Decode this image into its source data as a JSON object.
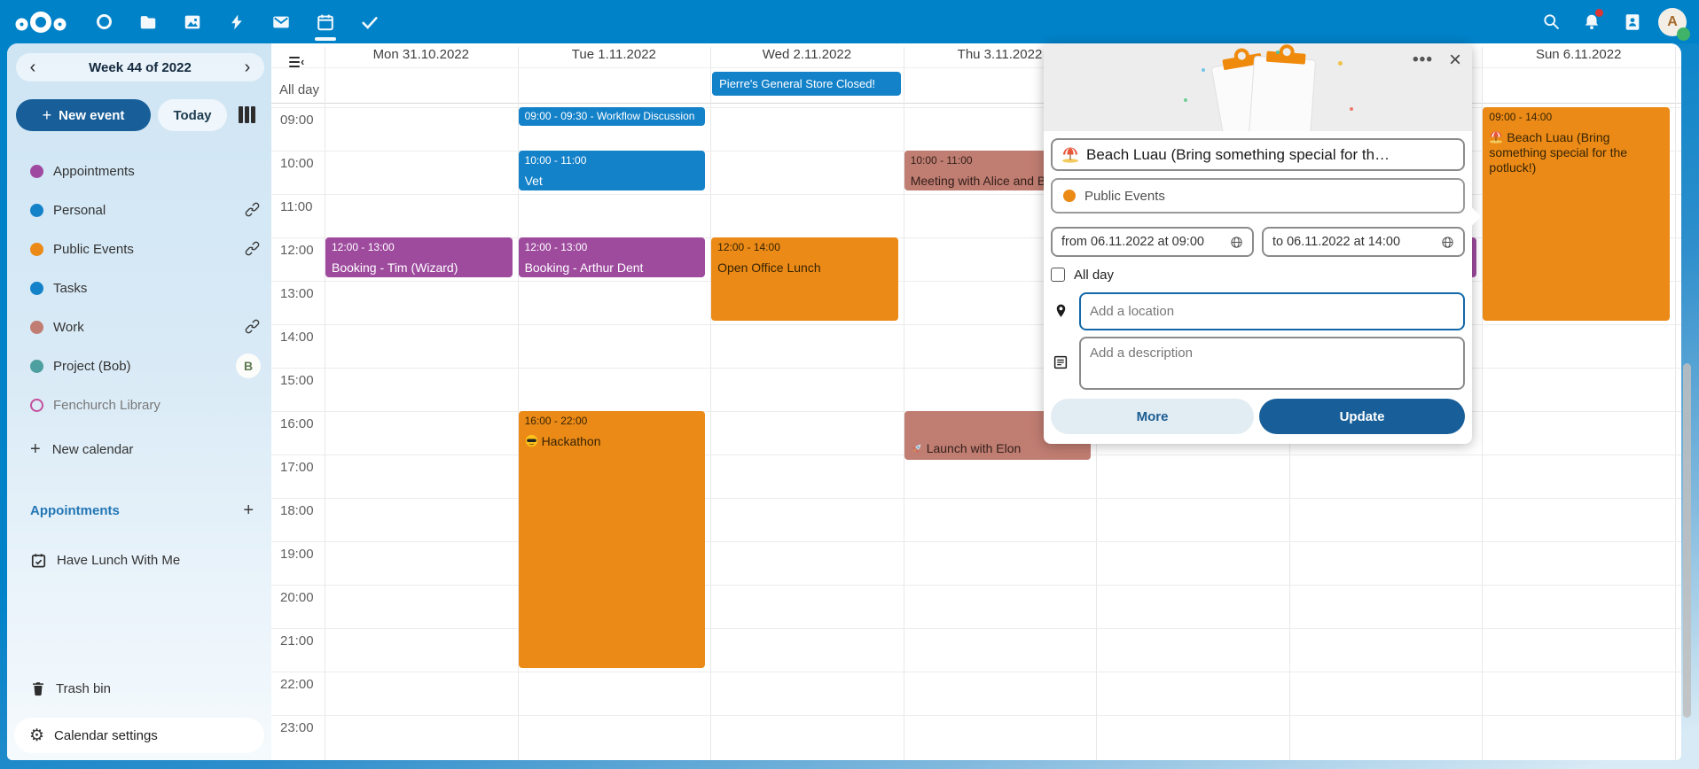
{
  "topbar": {
    "left_icons": [
      "nextcloud-logo",
      "dashboard",
      "files",
      "photos",
      "activity",
      "mail",
      "calendar",
      "tasks"
    ],
    "active_app": "calendar",
    "right_icons": [
      "search",
      "notifications",
      "contacts",
      "avatar"
    ],
    "avatar_letter": "A",
    "color": "#0082c9"
  },
  "sidebar": {
    "week_label": "Week 44 of 2022",
    "new_event_label": "New event",
    "today_label": "Today",
    "calendars": [
      {
        "name": "Appointments",
        "color": "#9f4aa0"
      },
      {
        "name": "Personal",
        "color": "#1482c9",
        "shared": true
      },
      {
        "name": "Public Events",
        "color": "#eb8a16",
        "shared": true
      },
      {
        "name": "Tasks",
        "color": "#1482c9"
      },
      {
        "name": "Work",
        "color": "#c07d72",
        "shared": true
      },
      {
        "name": "Project (Bob)",
        "color": "#4e9f9f",
        "badge": "B"
      },
      {
        "name": "Fenchurch Library",
        "color": "#c4509c",
        "outline": true,
        "muted": true
      }
    ],
    "new_calendar_label": "New calendar",
    "section_title": "Appointments",
    "appointment_items": [
      "Have Lunch With Me"
    ],
    "trash_label": "Trash bin",
    "settings_label": "Calendar settings"
  },
  "calendar": {
    "allday_label": "All day",
    "days": [
      "Mon 31.10.2022",
      "Tue 1.11.2022",
      "Wed 2.11.2022",
      "Thu 3.11.2022",
      "",
      "",
      "Sun 6.11.2022"
    ],
    "hours": [
      "09:00",
      "10:00",
      "11:00",
      "12:00",
      "13:00",
      "14:00",
      "15:00",
      "16:00",
      "17:00",
      "18:00",
      "19:00",
      "20:00",
      "21:00",
      "22:00",
      "23:00"
    ],
    "allday_events": [
      {
        "day": 2,
        "title": "Pierre's General Store Closed!",
        "color": "blue"
      }
    ],
    "events": [
      {
        "day": 0,
        "start": 12,
        "end": 13,
        "time": "12:00 - 13:00",
        "title": "Booking - Tim (Wizard)",
        "color": "purple"
      },
      {
        "day": 1,
        "start": 9,
        "end": 9.5,
        "time": "09:00 - 09:30",
        "title": "Workflow Discussion",
        "color": "blue",
        "compact": true
      },
      {
        "day": 1,
        "start": 10,
        "end": 11,
        "time": "10:00 - 11:00",
        "title": "Vet",
        "color": "blue"
      },
      {
        "day": 1,
        "start": 12,
        "end": 13,
        "time": "12:00 - 13:00",
        "title": "Booking - Arthur Dent",
        "color": "purple"
      },
      {
        "day": 1,
        "start": 16,
        "end": 22,
        "time": "16:00 - 22:00",
        "title": "Hackathon",
        "icon": "sunglasses-emoji",
        "color": "orange"
      },
      {
        "day": 2,
        "start": 12,
        "end": 14,
        "time": "12:00 - 14:00",
        "title": "Open Office Lunch",
        "color": "orange"
      },
      {
        "day": 3,
        "start": 10,
        "end": 11,
        "time": "10:00 - 11:00",
        "title": "Meeting with Alice and B",
        "color": "salmon"
      },
      {
        "day": 3,
        "start": 16,
        "end": 17.2,
        "time": "",
        "title": "Launch with Elon",
        "icon": "rocket-emoji",
        "color": "salmon",
        "title_gap": 30
      },
      {
        "day": 5,
        "start": 12,
        "end": 13,
        "time": "",
        "title": "",
        "color": "purple"
      },
      {
        "day": 6,
        "start": 9,
        "end": 14,
        "time": "09:00 - 14:00",
        "title": "Beach Luau (Bring something special for the potluck!)",
        "icon": "beach-umbrella-emoji",
        "color": "orange"
      }
    ]
  },
  "popup": {
    "title_value": "Beach Luau (Bring something special for th…",
    "title_icon": "beach-umbrella-emoji",
    "calendar_name": "Public Events",
    "calendar_color": "#eb8a16",
    "from_label": "from 06.11.2022 at 09:00",
    "to_label": "to 06.11.2022 at 14:00",
    "allday_label": "All day",
    "location_placeholder": "Add a location",
    "description_placeholder": "Add a description",
    "more_label": "More",
    "update_label": "Update"
  },
  "colors": {
    "topbar": "#0082c9",
    "primary": "#185f99",
    "events": {
      "blue": {
        "bg": "#1482c9",
        "fg": "#ffffff"
      },
      "purple": {
        "bg": "#9e4b9e",
        "fg": "#ffffff"
      },
      "orange": {
        "bg": "#eb8a16",
        "fg": "#372405"
      },
      "salmon": {
        "bg": "#c07d72",
        "fg": "#33201b"
      }
    }
  }
}
